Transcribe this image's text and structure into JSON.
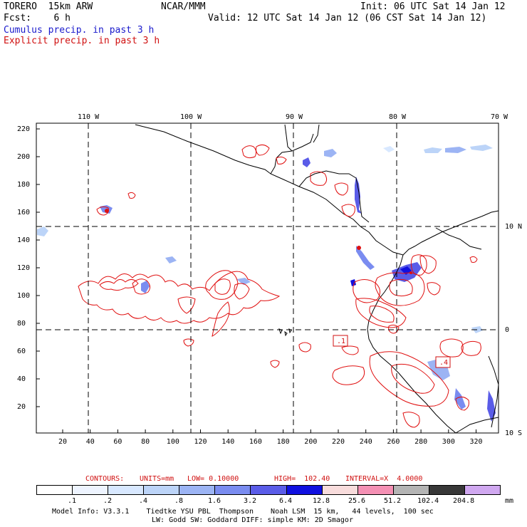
{
  "header": {
    "model": "TORERO  15km ARW",
    "org": "NCAR/MMM",
    "init": "Init: 06 UTC Sat 14 Jan 12",
    "fcst": "Fcst:    6 h",
    "valid": "Valid: 12 UTC Sat 14 Jan 12 (06 CST Sat 14 Jan 12)",
    "legend_cumulus": "Cumulus precip. in past 3 h",
    "legend_explicit": "Explicit precip. in past 3 h"
  },
  "map": {
    "lon_labels": [
      "110 W",
      "100 W",
      "90 W",
      "80 W",
      "70 W"
    ],
    "lat_labels": [
      "10 N",
      "0",
      "10 S"
    ],
    "y_ticks": [
      "220",
      "200",
      "180",
      "160",
      "140",
      "120",
      "100",
      "80",
      "60",
      "40",
      "20"
    ],
    "x_ticks": [
      "20",
      "40",
      "60",
      "80",
      "100",
      "120",
      "140",
      "160",
      "180",
      "200",
      "220",
      "240",
      "260",
      "280",
      "300",
      "320"
    ],
    "boxes": [
      ".1",
      ".4"
    ],
    "colors": {
      "cumulus": "#3030e0",
      "explicit": "#e01010",
      "coast": "#000000"
    }
  },
  "contours": {
    "label": "CONTOURS:",
    "units": "UNITS=mm",
    "low": "LOW= 0.10000",
    "high": "HIGH=  102.40",
    "interval": "INTERVAL=X  4.0000"
  },
  "colorbar": {
    "unit": "mm",
    "labels": [
      ".1",
      ".2",
      ".4",
      ".8",
      "1.6",
      "3.2",
      "6.4",
      "12.8",
      "25.6",
      "51.2",
      "102.4",
      "204.8"
    ],
    "colors": [
      "#ffffff",
      "#eef4ff",
      "#d8e8ff",
      "#bcd4f8",
      "#9cb4f4",
      "#7a8cf0",
      "#5a5ce8",
      "#1010e0",
      "#f8dcdc",
      "#f490b4",
      "#b4b4b4",
      "#383838",
      "#d0a8f0"
    ]
  },
  "footer": {
    "line1": "Model Info: V3.3.1    Tiedtke YSU PBL  Thompson    Noah LSM  15 km,   44 levels,  100 sec",
    "line2": "LW: Godd SW: Goddard DIFF: simple KM: 2D Smagor"
  }
}
